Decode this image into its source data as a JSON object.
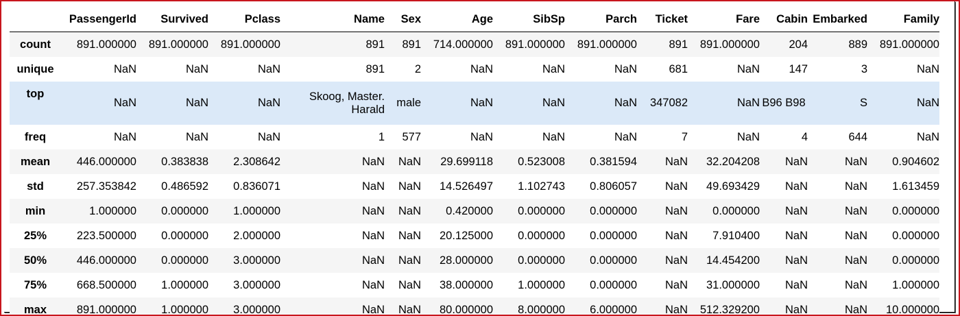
{
  "columns": [
    "PassengerId",
    "Survived",
    "Pclass",
    "Name",
    "Sex",
    "Age",
    "SibSp",
    "Parch",
    "Ticket",
    "Fare",
    "Cabin",
    "Embarked",
    "Family"
  ],
  "rows": [
    {
      "index": "count",
      "cells": [
        "891.000000",
        "891.000000",
        "891.000000",
        "891",
        "891",
        "714.000000",
        "891.000000",
        "891.000000",
        "891",
        "891.000000",
        "204",
        "889",
        "891.000000"
      ]
    },
    {
      "index": "unique",
      "cells": [
        "NaN",
        "NaN",
        "NaN",
        "891",
        "2",
        "NaN",
        "NaN",
        "NaN",
        "681",
        "NaN",
        "147",
        "3",
        "NaN"
      ]
    },
    {
      "index": "top",
      "cells": [
        "NaN",
        "NaN",
        "NaN",
        "Skoog, Master. Harald",
        "male",
        "NaN",
        "NaN",
        "NaN",
        "347082",
        "NaN",
        "B96 B98",
        "S",
        "NaN"
      ]
    },
    {
      "index": "freq",
      "cells": [
        "NaN",
        "NaN",
        "NaN",
        "1",
        "577",
        "NaN",
        "NaN",
        "NaN",
        "7",
        "NaN",
        "4",
        "644",
        "NaN"
      ]
    },
    {
      "index": "mean",
      "cells": [
        "446.000000",
        "0.383838",
        "2.308642",
        "NaN",
        "NaN",
        "29.699118",
        "0.523008",
        "0.381594",
        "NaN",
        "32.204208",
        "NaN",
        "NaN",
        "0.904602"
      ]
    },
    {
      "index": "std",
      "cells": [
        "257.353842",
        "0.486592",
        "0.836071",
        "NaN",
        "NaN",
        "14.526497",
        "1.102743",
        "0.806057",
        "NaN",
        "49.693429",
        "NaN",
        "NaN",
        "1.613459"
      ]
    },
    {
      "index": "min",
      "cells": [
        "1.000000",
        "0.000000",
        "1.000000",
        "NaN",
        "NaN",
        "0.420000",
        "0.000000",
        "0.000000",
        "NaN",
        "0.000000",
        "NaN",
        "NaN",
        "0.000000"
      ]
    },
    {
      "index": "25%",
      "cells": [
        "223.500000",
        "0.000000",
        "2.000000",
        "NaN",
        "NaN",
        "20.125000",
        "0.000000",
        "0.000000",
        "NaN",
        "7.910400",
        "NaN",
        "NaN",
        "0.000000"
      ]
    },
    {
      "index": "50%",
      "cells": [
        "446.000000",
        "0.000000",
        "3.000000",
        "NaN",
        "NaN",
        "28.000000",
        "0.000000",
        "0.000000",
        "NaN",
        "14.454200",
        "NaN",
        "NaN",
        "0.000000"
      ]
    },
    {
      "index": "75%",
      "cells": [
        "668.500000",
        "1.000000",
        "3.000000",
        "NaN",
        "NaN",
        "38.000000",
        "1.000000",
        "0.000000",
        "NaN",
        "31.000000",
        "NaN",
        "NaN",
        "1.000000"
      ]
    },
    {
      "index": "max",
      "cells": [
        "891.000000",
        "1.000000",
        "3.000000",
        "NaN",
        "NaN",
        "80.000000",
        "8.000000",
        "6.000000",
        "NaN",
        "512.329200",
        "NaN",
        "NaN",
        "10.000000"
      ]
    }
  ],
  "colors": {
    "frame_border": "#c8161d",
    "row_stripe": "#f5f5f5",
    "row_hover": "#dbe9f8"
  }
}
